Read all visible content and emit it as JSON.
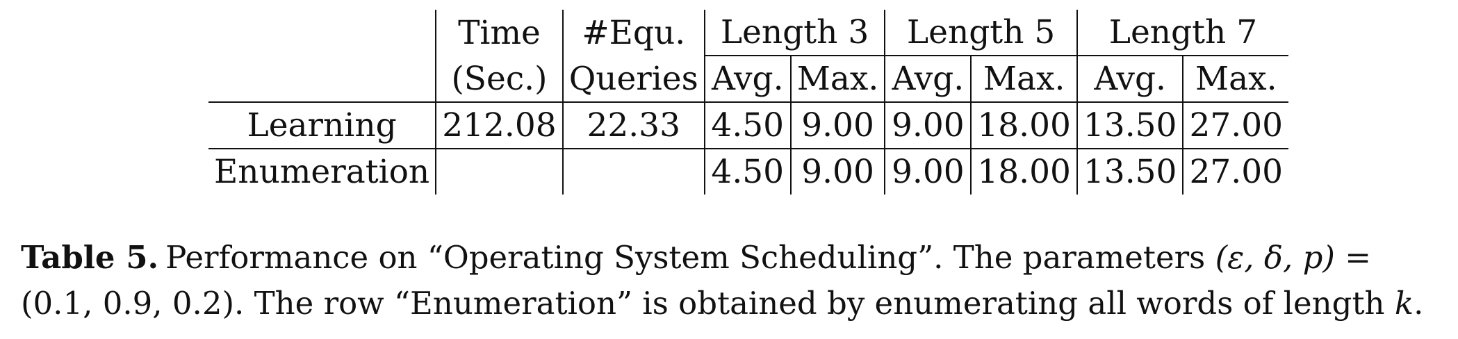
{
  "table": {
    "header_row1": {
      "time": "Time",
      "equ": "#Equ.",
      "len3": "Length 3",
      "len5": "Length 5",
      "len7": "Length 7"
    },
    "header_row2": {
      "time": "(Sec.)",
      "equ": "Queries",
      "avg": "Avg.",
      "max": "Max."
    },
    "rows": [
      {
        "label": "Learning",
        "time": "212.08",
        "equ": "22.33",
        "len3_avg": "4.50",
        "len3_max": "9.00",
        "len5_avg": "9.00",
        "len5_max": "18.00",
        "len7_avg": "13.50",
        "len7_max": "27.00"
      },
      {
        "label": "Enumeration",
        "time": "",
        "equ": "",
        "len3_avg": "4.50",
        "len3_max": "9.00",
        "len5_avg": "9.00",
        "len5_max": "18.00",
        "len7_avg": "13.50",
        "len7_max": "27.00"
      }
    ]
  },
  "caption": {
    "label": "Table 5.",
    "text1": "Performance on “Operating System Scheduling”. The parameters ",
    "params_math": "(ε, δ, p)",
    "text2": " = (0.1, 0.9, 0.2). The row “Enumeration” is obtained by enumerating all words of length ",
    "k_math": "k",
    "text3": "."
  }
}
